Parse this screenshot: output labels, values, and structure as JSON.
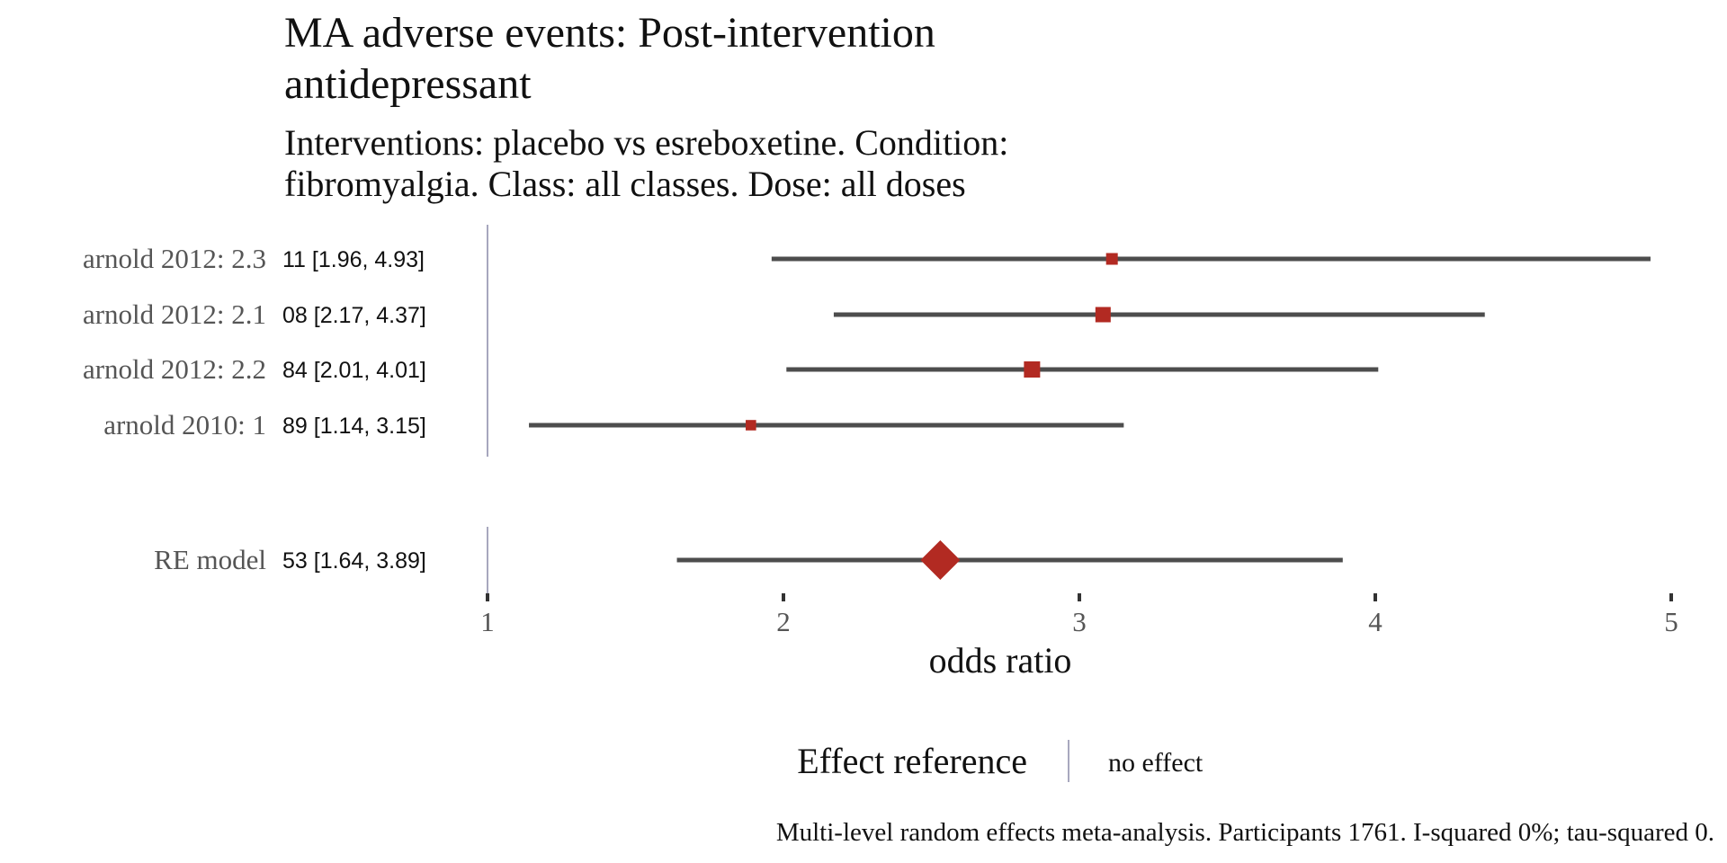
{
  "chart_data": {
    "type": "forest",
    "title_lines": [
      "MA adverse events: Post-intervention",
      "antidepressant"
    ],
    "subtitle_lines": [
      "Interventions: placebo vs esreboxetine. Condition:",
      "fibromyalgia. Class: all classes. Dose: all doses"
    ],
    "studies": [
      {
        "label": "arnold 2012: 2.3",
        "ci_text": "11 [1.96, 4.93]",
        "estimate": 3.11,
        "lower": 1.96,
        "upper": 4.93,
        "weight": 0.25
      },
      {
        "label": "arnold 2012: 2.1",
        "ci_text": "08 [2.17, 4.37]",
        "estimate": 3.08,
        "lower": 2.17,
        "upper": 4.37,
        "weight": 0.45
      },
      {
        "label": "arnold 2012: 2.2",
        "ci_text": "84 [2.01, 4.01]",
        "estimate": 2.84,
        "lower": 2.01,
        "upper": 4.01,
        "weight": 0.5
      },
      {
        "label": "arnold 2010: 1",
        "ci_text": "89 [1.14, 3.15]",
        "estimate": 1.89,
        "lower": 1.14,
        "upper": 3.15,
        "weight": 0.18
      }
    ],
    "summary": {
      "label": "RE model",
      "ci_text": "53 [1.64, 3.89]",
      "estimate": 2.53,
      "lower": 1.64,
      "upper": 3.89
    },
    "reference_value": 1,
    "xlim": [
      1,
      5
    ],
    "x_ticks": [
      "1",
      "2",
      "3",
      "4",
      "5"
    ],
    "xlabel": "odds ratio",
    "legend": {
      "title": "Effect reference",
      "item": "no effect",
      "position": "bottom"
    },
    "caption": "Multi-level random effects meta-analysis. Participants 1761. I-squared 0%; tau-squared 0.",
    "colors": {
      "point": "#b22a22",
      "ci_line": "#4d4d4d",
      "reference_line": "#8a8aa8",
      "label_text": "#555555",
      "text": "#111111"
    }
  }
}
